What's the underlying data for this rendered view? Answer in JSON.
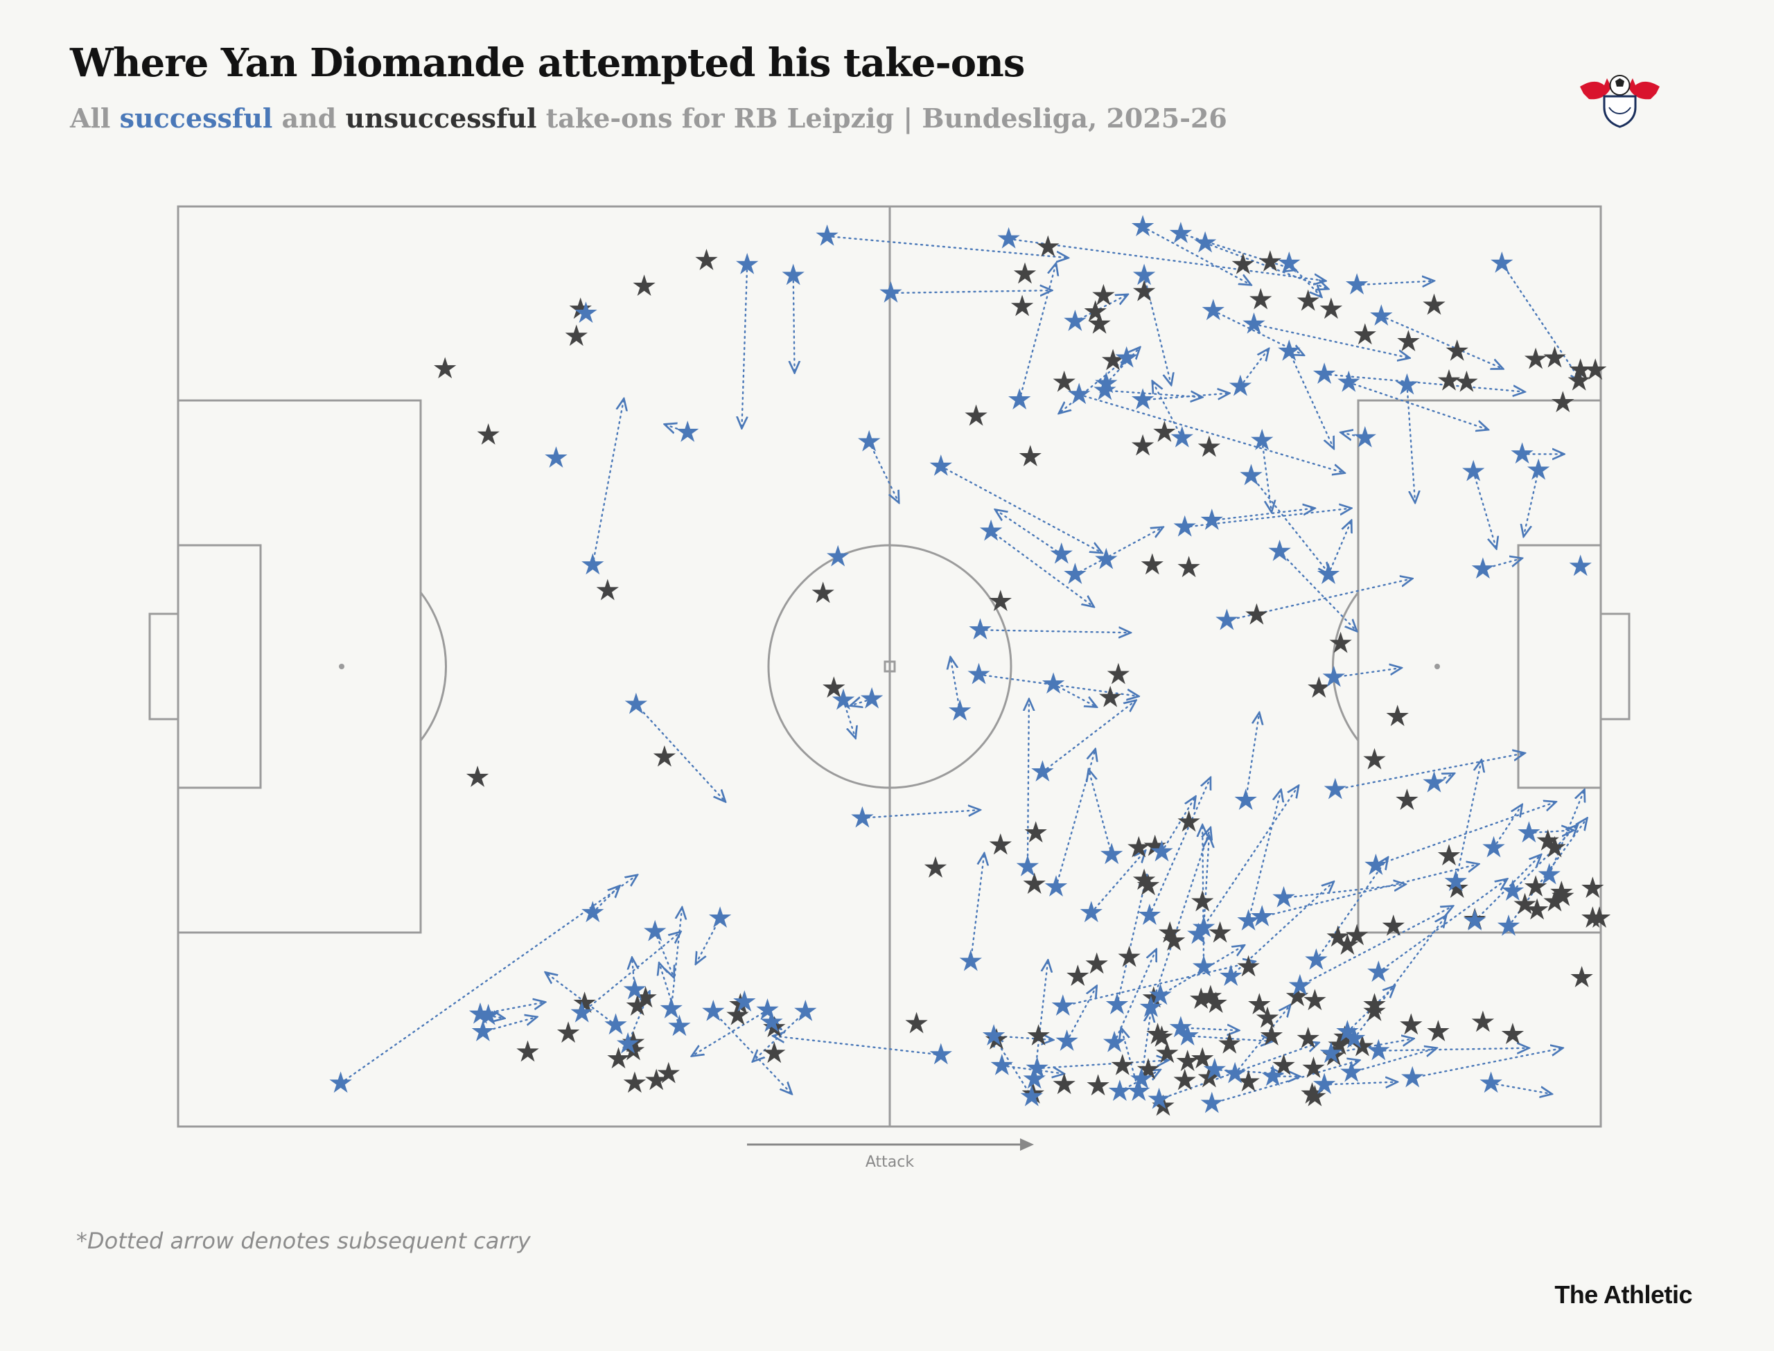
{
  "title": "Where Yan Diomande attempted his take-ons",
  "subtitle": {
    "prefix": "All ",
    "successful": "successful",
    "middle": " and ",
    "unsuccessful": "unsuccessful",
    "suffix": " take-ons for RB Leipzig | Bundesliga, 2025-26"
  },
  "logo": {
    "name": "rb-leipzig-crest",
    "text": "RB LEIPZIG"
  },
  "footnote": "*Dotted arrow denotes subsequent carry",
  "brand": "The Athletic",
  "colors": {
    "successful": "#4a78b8",
    "unsuccessful": "#444444",
    "pitch_lines": "#9b9b9b",
    "background": "#f7f7f4"
  },
  "chart_data": {
    "type": "scatter",
    "xlabel": "Attack",
    "axis_range": {
      "x": [
        0,
        105
      ],
      "y": [
        0,
        68
      ]
    },
    "grid": false,
    "legend": "subtitle",
    "successful_with_carry": [
      [
        47.9,
        65.8,
        65.7,
        64.2
      ],
      [
        42.0,
        63.7,
        41.6,
        51.6
      ],
      [
        37.6,
        51.3,
        35.9,
        51.9
      ],
      [
        33.8,
        31.2,
        40.4,
        24.0
      ],
      [
        30.6,
        41.5,
        32.9,
        53.8
      ],
      [
        50.5,
        22.8,
        59.2,
        23.4
      ],
      [
        61.3,
        65.6,
        84.7,
        62.5
      ],
      [
        62.1,
        53.7,
        64.8,
        63.8
      ],
      [
        60.0,
        44.0,
        67.6,
        38.4
      ],
      [
        56.3,
        48.8,
        68.2,
        42.4
      ],
      [
        52.6,
        61.6,
        64.5,
        61.8
      ],
      [
        66.2,
        40.8,
        72.7,
        44.3
      ],
      [
        65.2,
        42.3,
        60.3,
        45.6
      ],
      [
        74.3,
        44.3,
        86.6,
        45.7
      ],
      [
        76.3,
        44.8,
        83.9,
        45.7
      ],
      [
        71.3,
        62.9,
        73.3,
        54.8
      ],
      [
        66.5,
        54.1,
        86.1,
        48.3
      ],
      [
        74.1,
        50.9,
        71.9,
        55.1
      ],
      [
        78.4,
        54.7,
        80.5,
        57.5
      ],
      [
        84.9,
        40.8,
        86.6,
        44.8
      ],
      [
        82.0,
        57.3,
        85.3,
        50.1
      ],
      [
        79.4,
        59.3,
        90.9,
        56.8
      ],
      [
        76.4,
        60.3,
        83.1,
        57.0
      ],
      [
        68.5,
        54.9,
        71.0,
        57.6
      ],
      [
        66.2,
        59.5,
        70.1,
        61.5
      ],
      [
        82.0,
        63.8,
        84.4,
        61.3
      ],
      [
        68.4,
        54.4,
        75.6,
        53.9
      ],
      [
        71.2,
        53.7,
        77.6,
        54.2
      ],
      [
        81.3,
        42.5,
        87.0,
        36.6
      ],
      [
        77.4,
        37.4,
        91.1,
        40.5
      ],
      [
        85.3,
        33.2,
        90.3,
        33.9
      ],
      [
        59.1,
        33.4,
        70.9,
        31.8
      ],
      [
        64.6,
        32.7,
        67.8,
        31.0
      ],
      [
        57.7,
        30.7,
        57.0,
        34.7
      ],
      [
        63.8,
        26.2,
        70.7,
        31.5
      ],
      [
        45.4,
        62.9,
        45.5,
        55.7
      ],
      [
        49.1,
        31.5,
        50.0,
        28.7
      ],
      [
        51.2,
        31.6,
        49.6,
        31.1
      ],
      [
        59.2,
        36.7,
        70.3,
        36.5
      ],
      [
        51.0,
        50.6,
        53.2,
        46.1
      ],
      [
        71.2,
        66.5,
        79.2,
        62.2
      ],
      [
        74.0,
        66.0,
        82.5,
        63.3
      ],
      [
        75.8,
        65.3,
        84.9,
        61.9
      ],
      [
        70.0,
        56.8,
        65.0,
        52.7
      ],
      [
        87.0,
        62.2,
        92.7,
        62.5
      ],
      [
        97.7,
        63.8,
        103.6,
        55.0
      ],
      [
        88.8,
        59.9,
        97.8,
        56.0
      ],
      [
        99.2,
        49.7,
        102.3,
        49.7
      ],
      [
        84.6,
        55.6,
        99.4,
        54.3
      ],
      [
        86.4,
        55.0,
        96.7,
        51.5
      ],
      [
        80.0,
        50.7,
        80.7,
        45.4
      ],
      [
        79.2,
        48.1,
        85.0,
        40.8
      ],
      [
        95.6,
        48.4,
        97.3,
        42.7
      ],
      [
        100.4,
        48.5,
        99.3,
        43.6
      ],
      [
        90.7,
        54.8,
        91.3,
        46.1
      ],
      [
        87.6,
        50.9,
        85.8,
        51.3
      ],
      [
        96.3,
        41.2,
        99.2,
        42.0
      ],
      [
        62.7,
        19.2,
        62.8,
        31.6
      ],
      [
        64.8,
        17.7,
        67.7,
        27.9
      ],
      [
        67.4,
        15.8,
        71.4,
        20.4
      ],
      [
        72.6,
        20.3,
        75.1,
        24.4
      ],
      [
        78.8,
        24.1,
        79.8,
        30.6
      ],
      [
        81.6,
        16.9,
        90.6,
        17.9
      ],
      [
        85.4,
        24.9,
        99.4,
        27.6
      ],
      [
        92.7,
        25.4,
        94.2,
        26.1
      ],
      [
        99.7,
        21.7,
        103.0,
        21.9
      ],
      [
        98.5,
        17.4,
        103.3,
        22.3
      ],
      [
        94.3,
        18.1,
        96.2,
        27.1
      ],
      [
        97.1,
        20.6,
        99.2,
        23.8
      ],
      [
        75.3,
        14.2,
        82.7,
        25.2
      ],
      [
        79.0,
        15.2,
        81.4,
        24.9
      ],
      [
        68.9,
        20.1,
        67.2,
        26.4
      ],
      [
        71.7,
        15.6,
        76.2,
        25.8
      ],
      [
        75.7,
        11.8,
        75.6,
        22.3
      ],
      [
        84.0,
        12.3,
        89.3,
        19.9
      ],
      [
        82.8,
        10.4,
        94.1,
        16.3
      ],
      [
        75.7,
        14.7,
        76.1,
        21.5
      ],
      [
        88.6,
        11.4,
        98.1,
        18.3
      ],
      [
        88.4,
        19.3,
        101.7,
        24.0
      ],
      [
        95.7,
        15.2,
        100.6,
        20.1
      ],
      [
        101.2,
        18.6,
        103.8,
        24.9
      ],
      [
        98.2,
        14.8,
        104.0,
        22.8
      ],
      [
        80.0,
        15.5,
        96.0,
        19.4
      ],
      [
        71.8,
        8.8,
        76.2,
        22.1
      ],
      [
        69.3,
        9.0,
        71.5,
        18.6
      ],
      [
        72.5,
        9.7,
        78.7,
        13.4
      ],
      [
        77.7,
        11.1,
        85.3,
        18.1
      ],
      [
        74.0,
        7.3,
        78.3,
        7.1
      ],
      [
        85.1,
        5.4,
        91.2,
        6.5
      ],
      [
        86.6,
        4.0,
        92.9,
        5.8
      ],
      [
        88.6,
        5.6,
        99.7,
        5.8
      ],
      [
        96.9,
        3.2,
        101.4,
        2.4
      ],
      [
        91.1,
        3.6,
        102.2,
        5.8
      ],
      [
        80.8,
        3.7,
        82.8,
        3.7
      ],
      [
        74.5,
        6.7,
        80.8,
        6.3
      ],
      [
        69.1,
        6.2,
        72.2,
        13.1
      ],
      [
        65.3,
        8.9,
        79.5,
        12.2
      ],
      [
        63.4,
        4.3,
        73.1,
        4.9
      ],
      [
        65.6,
        6.3,
        67.8,
        10.4
      ],
      [
        60.2,
        6.7,
        64.6,
        6.4
      ],
      [
        63.2,
        3.5,
        64.2,
        12.3
      ],
      [
        78.0,
        3.9,
        82.1,
        9.0
      ],
      [
        86.8,
        6.5,
        93.6,
        15.6
      ],
      [
        84.6,
        3.1,
        90.0,
        3.3
      ],
      [
        76.3,
        1.7,
        87.2,
        4.9
      ],
      [
        72.4,
        2.0,
        84.2,
        6.2
      ],
      [
        71.1,
        3.5,
        71.8,
        8.6
      ],
      [
        70.9,
        2.6,
        69.6,
        7.3
      ],
      [
        60.8,
        4.5,
        65.4,
        3.9
      ],
      [
        69.5,
        2.6,
        72.5,
        4.2
      ],
      [
        76.5,
        4.2,
        81.5,
        3.9
      ],
      [
        63.0,
        2.2,
        60.1,
        6.8
      ],
      [
        86.3,
        7.0,
        89.8,
        10.4
      ],
      [
        58.5,
        12.2,
        59.5,
        20.2
      ],
      [
        56.3,
        5.3,
        43.9,
        6.7
      ],
      [
        22.5,
        7.0,
        26.5,
        8.1
      ],
      [
        29.8,
        8.4,
        37.1,
        14.4
      ],
      [
        33.2,
        6.1,
        34.8,
        10.0
      ],
      [
        43.5,
        8.6,
        37.9,
        5.2
      ],
      [
        39.5,
        8.5,
        45.3,
        2.4
      ],
      [
        46.3,
        8.5,
        42.4,
        4.8
      ],
      [
        40.0,
        15.4,
        38.2,
        12.0
      ],
      [
        36.4,
        8.7,
        37.2,
        16.2
      ],
      [
        32.3,
        7.5,
        27.1,
        11.4
      ],
      [
        22.3,
        8.3,
        27.1,
        9.2
      ],
      [
        12.0,
        3.2,
        33.9,
        18.6
      ],
      [
        30.6,
        15.8,
        32.6,
        17.8
      ],
      [
        35.2,
        14.4,
        36.6,
        11.0
      ],
      [
        22.9,
        8.2,
        24.1,
        8.0
      ],
      [
        37.0,
        7.4,
        35.5,
        12.1
      ],
      [
        33.7,
        10.1,
        33.5,
        12.5
      ],
      [
        43.8,
        7.7,
        44.5,
        7.2
      ]
    ],
    "successful_no_carry": [
      [
        30.1,
        60.1
      ],
      [
        27.9,
        49.4
      ],
      [
        48.7,
        42.1
      ],
      [
        41.8,
        9.2
      ],
      [
        68.5,
        41.9
      ],
      [
        103.5,
        41.4
      ]
    ],
    "unsuccessful": [
      [
        64.2,
        65.0
      ],
      [
        62.5,
        63.0
      ],
      [
        62.3,
        60.6
      ],
      [
        71.3,
        61.7
      ],
      [
        67.7,
        60.2
      ],
      [
        69.0,
        56.6
      ],
      [
        68.3,
        61.4
      ],
      [
        78.6,
        63.7
      ],
      [
        79.9,
        61.1
      ],
      [
        80.6,
        63.9
      ],
      [
        85.1,
        60.4
      ],
      [
        83.4,
        61.0
      ],
      [
        90.8,
        58.0
      ],
      [
        92.7,
        60.7
      ],
      [
        94.4,
        57.3
      ],
      [
        101.6,
        56.8
      ],
      [
        100.2,
        56.7
      ],
      [
        103.5,
        55.9
      ],
      [
        104.6,
        55.9
      ],
      [
        103.4,
        55.1
      ],
      [
        102.2,
        53.5
      ],
      [
        93.8,
        55.1
      ],
      [
        95.1,
        55.0
      ],
      [
        87.6,
        58.5
      ],
      [
        58.9,
        52.5
      ],
      [
        62.9,
        49.5
      ],
      [
        65.4,
        55.0
      ],
      [
        68.0,
        59.3
      ],
      [
        76.1,
        50.2
      ],
      [
        71.2,
        50.3
      ],
      [
        72.8,
        51.3
      ],
      [
        39.0,
        64.0
      ],
      [
        34.4,
        62.1
      ],
      [
        29.7,
        60.4
      ],
      [
        29.4,
        58.4
      ],
      [
        19.7,
        56.0
      ],
      [
        22.9,
        51.1
      ],
      [
        31.7,
        39.6
      ],
      [
        47.6,
        39.4
      ],
      [
        48.4,
        32.4
      ],
      [
        22.1,
        25.8
      ],
      [
        35.9,
        27.3
      ],
      [
        60.7,
        38.8
      ],
      [
        79.6,
        37.8
      ],
      [
        71.9,
        41.5
      ],
      [
        74.6,
        41.3
      ],
      [
        85.8,
        35.7
      ],
      [
        84.2,
        32.4
      ],
      [
        69.4,
        33.4
      ],
      [
        68.8,
        31.7
      ],
      [
        90.0,
        30.3
      ],
      [
        88.3,
        27.1
      ],
      [
        60.7,
        20.8
      ],
      [
        63.3,
        21.7
      ],
      [
        72.1,
        20.7
      ],
      [
        71.3,
        18.2
      ],
      [
        55.9,
        19.1
      ],
      [
        63.2,
        17.9
      ],
      [
        90.7,
        24.1
      ],
      [
        93.8,
        20.0
      ],
      [
        94.4,
        17.6
      ],
      [
        75.6,
        16.6
      ],
      [
        74.6,
        22.5
      ],
      [
        70.9,
        20.6
      ],
      [
        71.6,
        17.8
      ],
      [
        89.7,
        14.8
      ],
      [
        101.1,
        21.1
      ],
      [
        100.2,
        17.7
      ],
      [
        102.2,
        17.0
      ],
      [
        104.4,
        17.6
      ],
      [
        95.7,
        15.3
      ],
      [
        87.0,
        14.1
      ],
      [
        86.3,
        13.4
      ],
      [
        85.6,
        14.0
      ],
      [
        76.9,
        14.3
      ],
      [
        73.5,
        13.7
      ],
      [
        79.0,
        11.8
      ],
      [
        76.2,
        9.6
      ],
      [
        82.6,
        9.6
      ],
      [
        104.4,
        15.4
      ],
      [
        101.6,
        16.6
      ],
      [
        100.3,
        16.0
      ],
      [
        101.6,
        20.6
      ],
      [
        104.9,
        15.4
      ],
      [
        102.1,
        17.3
      ],
      [
        99.4,
        16.4
      ],
      [
        103.6,
        11.0
      ],
      [
        83.9,
        9.3
      ],
      [
        88.3,
        9.0
      ],
      [
        67.8,
        12.0
      ],
      [
        66.4,
        11.1
      ],
      [
        70.2,
        12.5
      ],
      [
        73.2,
        14.3
      ],
      [
        72.0,
        9.5
      ],
      [
        75.5,
        9.4
      ],
      [
        76.6,
        9.1
      ],
      [
        79.8,
        9.0
      ],
      [
        80.4,
        8.0
      ],
      [
        83.4,
        6.5
      ],
      [
        85.7,
        6.0
      ],
      [
        88.3,
        8.5
      ],
      [
        87.4,
        5.9
      ],
      [
        91.0,
        7.5
      ],
      [
        93.0,
        7.0
      ],
      [
        96.3,
        7.7
      ],
      [
        98.5,
        6.8
      ],
      [
        63.5,
        6.7
      ],
      [
        60.4,
        6.4
      ],
      [
        54.5,
        7.6
      ],
      [
        73.0,
        5.4
      ],
      [
        77.6,
        6.1
      ],
      [
        75.6,
        5.0
      ],
      [
        74.5,
        4.8
      ],
      [
        69.7,
        4.5
      ],
      [
        72.6,
        6.6
      ],
      [
        80.7,
        6.7
      ],
      [
        83.8,
        4.3
      ],
      [
        81.6,
        4.5
      ],
      [
        85.3,
        5.2
      ],
      [
        86.1,
        6.6
      ],
      [
        83.7,
        2.4
      ],
      [
        76.1,
        3.6
      ],
      [
        79.0,
        3.3
      ],
      [
        74.3,
        3.4
      ],
      [
        72.3,
        6.8
      ],
      [
        71.6,
        4.2
      ],
      [
        65.4,
        3.1
      ],
      [
        67.9,
        3.0
      ],
      [
        63.1,
        2.4
      ],
      [
        72.7,
        1.5
      ],
      [
        83.9,
        2.2
      ],
      [
        33.9,
        8.9
      ],
      [
        34.5,
        9.5
      ],
      [
        41.5,
        9.0
      ],
      [
        44.0,
        7.3
      ],
      [
        41.3,
        8.2
      ],
      [
        44.0,
        5.4
      ],
      [
        33.6,
        6.2
      ],
      [
        28.8,
        6.9
      ],
      [
        25.8,
        5.5
      ],
      [
        30.0,
        9.1
      ],
      [
        32.5,
        5.0
      ],
      [
        33.6,
        5.6
      ],
      [
        36.2,
        3.9
      ],
      [
        33.7,
        3.2
      ],
      [
        35.3,
        3.4
      ]
    ]
  }
}
